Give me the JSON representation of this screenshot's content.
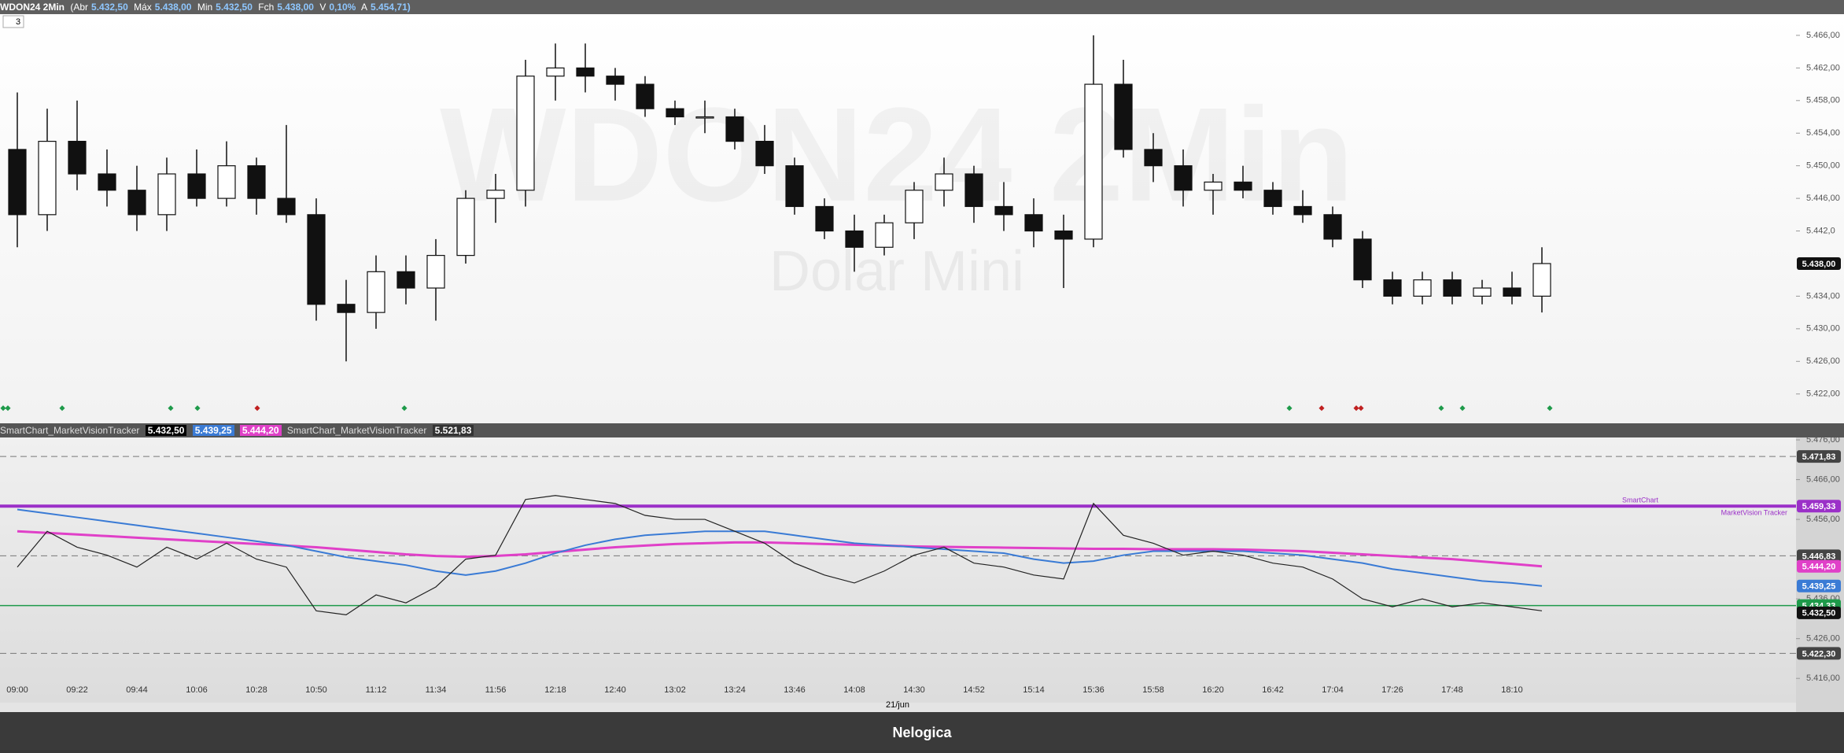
{
  "header": {
    "symbol": "WDON24 2Min",
    "open_label": "(Abr",
    "open": "5.432,50",
    "high_label": "Máx",
    "high": "5.438,00",
    "low_label": "Min",
    "low": "5.432,50",
    "close_label": "Fch",
    "close": "5.438,00",
    "var_label": "V",
    "var": "0,10%",
    "avg_label": "A",
    "avg": "5.454,71)",
    "period": "3"
  },
  "indicator_header": {
    "name": "SmartChart_MarketVisionTracker",
    "v1": "5.432,50",
    "v2": "5.439,25",
    "v3": "5.444,20",
    "name2": "SmartChart_MarketVisionTracker",
    "v4": "5.521,83"
  },
  "footer": "Nelogica",
  "chart_data": [
    {
      "type": "candlestick",
      "title": "WDON24 2Min",
      "subtitle": "Dolar Mini",
      "up_color": "#ffffff",
      "down_color": "#111111",
      "open": [
        5452,
        5444,
        5453,
        5449,
        5447,
        5444,
        5449,
        5446,
        5450,
        5446,
        5444,
        5433,
        5432,
        5437,
        5435,
        5439,
        5446,
        5447,
        5461,
        5462,
        5461,
        5460,
        5457,
        5456,
        5456,
        5453,
        5450,
        5445,
        5442,
        5440,
        5443,
        5447,
        5449,
        5445,
        5444,
        5442,
        5441,
        5460,
        5452,
        5450,
        5447,
        5448,
        5447,
        5445,
        5444,
        5441,
        5436,
        5434,
        5436,
        5434,
        5435,
        5434
      ],
      "high": [
        5459,
        5457,
        5458,
        5452,
        5450,
        5451,
        5452,
        5453,
        5451,
        5455,
        5446,
        5436,
        5439,
        5439,
        5441,
        5447,
        5449,
        5463,
        5465,
        5465,
        5462,
        5461,
        5458,
        5458,
        5457,
        5455,
        5451,
        5446,
        5444,
        5444,
        5448,
        5451,
        5450,
        5448,
        5446,
        5444,
        5466,
        5463,
        5454,
        5452,
        5449,
        5450,
        5448,
        5447,
        5445,
        5442,
        5437,
        5437,
        5437,
        5436,
        5437,
        5440
      ],
      "low": [
        5440,
        5442,
        5447,
        5445,
        5442,
        5442,
        5445,
        5445,
        5444,
        5443,
        5431,
        5426,
        5430,
        5433,
        5431,
        5438,
        5443,
        5445,
        5458,
        5459,
        5458,
        5456,
        5455,
        5454,
        5452,
        5449,
        5444,
        5441,
        5437,
        5439,
        5441,
        5445,
        5443,
        5442,
        5440,
        5435,
        5440,
        5451,
        5448,
        5445,
        5444,
        5446,
        5444,
        5443,
        5440,
        5435,
        5433,
        5433,
        5433,
        5433,
        5433,
        5432
      ],
      "close": [
        5444,
        5453,
        5449,
        5447,
        5444,
        5449,
        5446,
        5450,
        5446,
        5444,
        5433,
        5432,
        5437,
        5435,
        5439,
        5446,
        5447,
        5461,
        5462,
        5461,
        5460,
        5457,
        5456,
        5456,
        5453,
        5450,
        5445,
        5442,
        5440,
        5443,
        5447,
        5449,
        5445,
        5444,
        5442,
        5441,
        5460,
        5452,
        5450,
        5447,
        5448,
        5447,
        5445,
        5444,
        5441,
        5436,
        5434,
        5436,
        5434,
        5435,
        5434,
        5438
      ],
      "ylim": [
        5418.4,
        5468.6
      ],
      "yticks": [
        {
          "value": 5466,
          "label": "5.466,00"
        },
        {
          "value": 5462,
          "label": "5.462,00"
        },
        {
          "value": 5458,
          "label": "5.458,00"
        },
        {
          "value": 5454,
          "label": "5.454,00"
        },
        {
          "value": 5450,
          "label": "5.450,00"
        },
        {
          "value": 5446,
          "label": "5.446,00"
        },
        {
          "value": 5442,
          "label": "5.442,0"
        },
        {
          "value": 5434,
          "label": "5.434,00"
        },
        {
          "value": 5430,
          "label": "5.430,00"
        },
        {
          "value": 5426,
          "label": "5.426,00"
        },
        {
          "value": 5422,
          "label": "5.422,00"
        }
      ],
      "last_price": {
        "value": 5438,
        "label": "5.438,00"
      }
    },
    {
      "type": "line",
      "xlabel": "21/jun",
      "categories": [
        "09:00",
        null,
        "09:22",
        null,
        "09:44",
        null,
        "10:06",
        null,
        "10:28",
        null,
        "10:50",
        null,
        "11:12",
        null,
        "11:34",
        null,
        "11:56",
        null,
        "12:18",
        null,
        "12:40",
        null,
        "13:02",
        null,
        "13:24",
        null,
        "13:46",
        null,
        "14:08",
        null,
        "14:30",
        null,
        "14:52",
        null,
        "15:14",
        null,
        "15:36",
        null,
        "15:58",
        null,
        "16:20",
        null,
        "16:42",
        null,
        "17:04",
        null,
        "17:26",
        null,
        "17:48",
        null,
        "18:10",
        null
      ],
      "series": [
        {
          "color": "#e040c8",
          "width": 3,
          "values": [
            5453,
            5452.6,
            5452.2,
            5451.8,
            5451.4,
            5451,
            5450.6,
            5450.2,
            5449.8,
            5449.4,
            5449,
            5448.4,
            5447.8,
            5447.2,
            5446.8,
            5446.6,
            5446.8,
            5447.2,
            5447.8,
            5448.4,
            5449,
            5449.4,
            5449.8,
            5450,
            5450.2,
            5450.2,
            5450,
            5449.8,
            5449.6,
            5449.4,
            5449.2,
            5449.1,
            5449,
            5448.9,
            5448.8,
            5448.7,
            5448.6,
            5448.6,
            5448.5,
            5448.5,
            5448.5,
            5448.4,
            5448.2,
            5448,
            5447.6,
            5447.2,
            5446.8,
            5446.4,
            5446,
            5445.4,
            5444.8,
            5444.2
          ]
        },
        {
          "color": "#3a7bd5",
          "width": 2,
          "values": [
            5458.5,
            5457.5,
            5456.5,
            5455.5,
            5454.5,
            5453.5,
            5452.5,
            5451.5,
            5450.5,
            5449.5,
            5448,
            5446.5,
            5445.5,
            5444.5,
            5443,
            5442,
            5443,
            5445,
            5447.5,
            5449.5,
            5451,
            5452,
            5452.5,
            5453,
            5453,
            5453,
            5452,
            5451,
            5450,
            5449.5,
            5449,
            5448.5,
            5448,
            5447.5,
            5446,
            5445,
            5445.5,
            5447,
            5448,
            5448,
            5448,
            5448,
            5447.5,
            5447,
            5446,
            5445,
            5443.5,
            5442.5,
            5441.5,
            5440.5,
            5440,
            5439.25
          ]
        },
        {
          "color": "#222222",
          "width": 1.2,
          "values": [
            5444,
            5453,
            5449,
            5447,
            5444,
            5449,
            5446,
            5450,
            5446,
            5444,
            5433,
            5432,
            5437,
            5435,
            5439,
            5446,
            5447,
            5461,
            5462,
            5461,
            5460,
            5457,
            5456,
            5456,
            5453,
            5450,
            5445,
            5442,
            5440,
            5443,
            5447,
            5449,
            5445,
            5444,
            5442,
            5441,
            5460,
            5452,
            5450,
            5447,
            5448,
            5447,
            5445,
            5444,
            5441,
            5436,
            5434,
            5436,
            5434,
            5435,
            5434,
            5433
          ]
        }
      ],
      "levels": [
        {
          "value": 5471.83,
          "label": "5.471,83",
          "style": "dashed",
          "color": "#777777"
        },
        {
          "value": 5459.33,
          "label": "5.459,33",
          "style": "solid",
          "color": "#9b30c8"
        },
        {
          "value": 5446.83,
          "label": "5.446,83",
          "style": "dashed",
          "color": "#777777"
        },
        {
          "value": 5434.33,
          "label": "5.434,33",
          "style": "solid",
          "color": "#1e9a4a"
        },
        {
          "value": 5422.3,
          "label": "5.422,30",
          "style": "dashed",
          "color": "#777777"
        }
      ],
      "series_tags": [
        {
          "value": 5444.2,
          "label": "5.444,20",
          "color": "#e040c8"
        },
        {
          "value": 5439.25,
          "label": "5.439,25",
          "color": "#3a7bd5"
        },
        {
          "value": 5432.5,
          "label": "5.432,50",
          "color": "#111111"
        }
      ],
      "level_notes": [
        "SmartChart",
        "MarketVision Tracker"
      ],
      "ylim": [
        5409.9,
        5476.6
      ],
      "yticks": [
        {
          "value": 5476,
          "label": "5.476,00"
        },
        {
          "value": 5466,
          "label": "5.466,00"
        },
        {
          "value": 5456,
          "label": "5.456,00"
        },
        {
          "value": 5436,
          "label": "5.436,00"
        },
        {
          "value": 5426,
          "label": "5.426,00"
        },
        {
          "value": 5416,
          "label": "5.416,00"
        }
      ]
    }
  ]
}
